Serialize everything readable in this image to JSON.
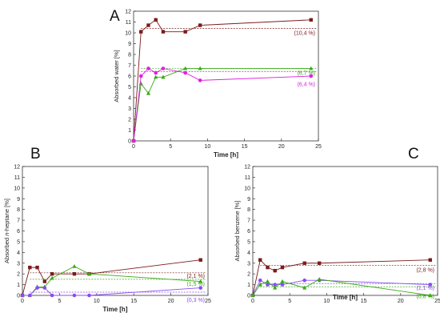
{
  "colors": {
    "brown": "#7a1c1c",
    "green": "#3aaa18",
    "magenta": "#e020e0",
    "violet": "#8a4cf0",
    "axis": "#333333"
  },
  "chart_data": [
    {
      "panel_label": "A",
      "type": "line",
      "xlabel": "Time [h]",
      "ylabel": "Absorbed water [%]",
      "xlim": [
        0,
        25
      ],
      "ylim": [
        0,
        12
      ],
      "xticks": [
        0,
        5,
        10,
        15,
        20,
        25
      ],
      "yticks": [
        0,
        1,
        2,
        3,
        4,
        5,
        6,
        7,
        8,
        9,
        10,
        11,
        12
      ],
      "series": [
        {
          "color": "brown",
          "marker": "square",
          "x": [
            0,
            1,
            2,
            3,
            4,
            7,
            9,
            24
          ],
          "y": [
            0,
            10.1,
            10.7,
            11.2,
            10.1,
            10.1,
            10.7,
            11.2
          ],
          "average": 10.4,
          "label": "(10,4 %)"
        },
        {
          "color": "green",
          "marker": "triangle",
          "x": [
            0,
            1,
            2,
            3,
            4,
            7,
            9,
            24
          ],
          "y": [
            0,
            5.3,
            4.4,
            5.9,
            5.9,
            6.7,
            6.7,
            6.7
          ],
          "average": 6.7,
          "label": "(6,7 %)"
        },
        {
          "color": "magenta",
          "marker": "circle",
          "x": [
            0,
            1,
            2,
            3,
            4,
            7,
            9,
            24
          ],
          "y": [
            0,
            6.0,
            6.7,
            6.3,
            6.7,
            6.3,
            5.6,
            6.0
          ],
          "average": 6.4,
          "label": "(6,4 %)"
        }
      ]
    },
    {
      "panel_label": "B",
      "type": "line",
      "xlabel": "Time [h]",
      "ylabel": "Absorbed n-heptane [%]",
      "ylabel_parts": [
        "Absorbed ",
        "n",
        "-heptane [%]"
      ],
      "xlim": [
        0,
        25
      ],
      "ylim": [
        0,
        12
      ],
      "xticks": [
        0,
        5,
        10,
        15,
        20,
        25
      ],
      "yticks": [
        0,
        1,
        2,
        3,
        4,
        5,
        6,
        7,
        8,
        9,
        10,
        11,
        12
      ],
      "series": [
        {
          "color": "brown",
          "marker": "square",
          "x": [
            0,
            1,
            2,
            3,
            4,
            7,
            9,
            24
          ],
          "y": [
            0,
            2.6,
            2.6,
            1.3,
            2.0,
            2.0,
            2.0,
            3.3
          ],
          "average": 2.1,
          "label": "(2,1 %)"
        },
        {
          "color": "green",
          "marker": "triangle",
          "x": [
            0,
            1,
            2,
            3,
            4,
            7,
            9,
            24
          ],
          "y": [
            0,
            0,
            0.8,
            0.8,
            1.6,
            2.7,
            2.0,
            1.3
          ],
          "average": 1.5,
          "label": "(1,5 %)"
        },
        {
          "color": "violet",
          "marker": "circle",
          "x": [
            0,
            1,
            2,
            3,
            4,
            7,
            9,
            24
          ],
          "y": [
            0,
            0,
            0.7,
            0.7,
            0,
            0,
            0,
            0.7
          ],
          "average": 0.3,
          "label": "(0,3 %)"
        }
      ]
    },
    {
      "panel_label": "C",
      "type": "line",
      "xlabel": "Time [h]",
      "ylabel": "Absorbed benzene [%]",
      "xlim": [
        0,
        25
      ],
      "ylim": [
        0,
        12
      ],
      "xticks": [
        0,
        5,
        10,
        15,
        20,
        25
      ],
      "yticks": [
        0,
        1,
        2,
        3,
        4,
        5,
        6,
        7,
        8,
        9,
        10,
        11,
        12
      ],
      "series": [
        {
          "color": "brown",
          "marker": "square",
          "x": [
            0,
            1,
            2,
            3,
            4,
            7,
            9,
            24
          ],
          "y": [
            0,
            3.3,
            2.6,
            2.3,
            2.6,
            3.0,
            3.0,
            3.3
          ],
          "average": 2.8,
          "label": "(2,8 %)"
        },
        {
          "color": "violet",
          "marker": "circle",
          "x": [
            0,
            1,
            2,
            3,
            4,
            7,
            9,
            24
          ],
          "y": [
            0,
            1.4,
            1.0,
            1.0,
            1.0,
            1.4,
            1.4,
            1.0
          ],
          "average": 1.1,
          "label": "(1,1 %)"
        },
        {
          "color": "green",
          "marker": "triangle",
          "x": [
            0,
            1,
            2,
            3,
            4,
            7,
            9,
            24
          ],
          "y": [
            0,
            1.0,
            1.3,
            0.7,
            1.3,
            0.7,
            1.5,
            0
          ],
          "average": 0.8,
          "label": "(0,8 %)"
        }
      ]
    }
  ]
}
